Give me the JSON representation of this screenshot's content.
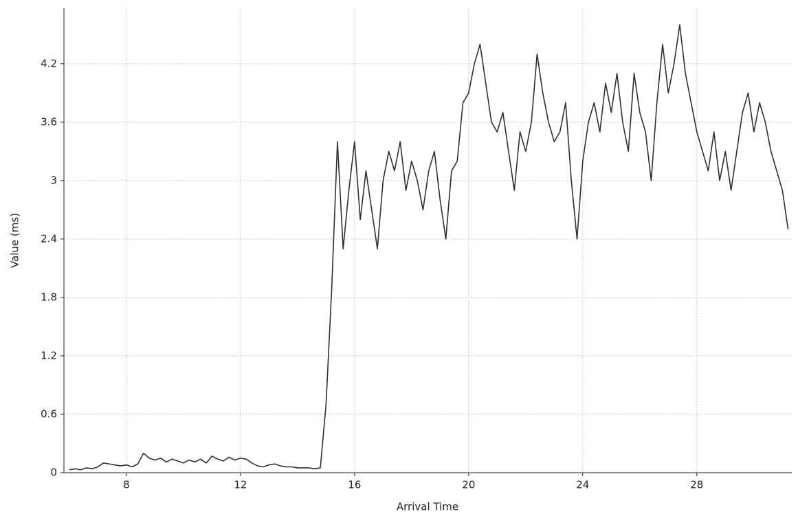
{
  "chart_data": {
    "type": "line",
    "x_label": "Arrival Time",
    "y_label": "Value (ms)",
    "xlim": [
      5.81,
      31.33
    ],
    "ylim": [
      0,
      4.77
    ],
    "xticks": [
      8,
      12,
      16,
      20,
      24,
      28
    ],
    "yticks": [
      0,
      0.6,
      1.2,
      1.8,
      2.4,
      3,
      3.6,
      4.2
    ],
    "grid": true,
    "series": [
      {
        "color": "#2b3035",
        "x": [
          6.0,
          6.2,
          6.4,
          6.6,
          6.8,
          7.0,
          7.2,
          7.4,
          7.6,
          7.8,
          8.0,
          8.2,
          8.4,
          8.6,
          8.8,
          9.0,
          9.2,
          9.4,
          9.6,
          9.8,
          10.0,
          10.2,
          10.4,
          10.6,
          10.8,
          11.0,
          11.2,
          11.4,
          11.6,
          11.8,
          12.0,
          12.2,
          12.4,
          12.6,
          12.8,
          13.0,
          13.2,
          13.4,
          13.6,
          13.8,
          14.0,
          14.2,
          14.4,
          14.6,
          14.8,
          15.0,
          15.2,
          15.4,
          15.6,
          15.8,
          16.0,
          16.2,
          16.4,
          16.6,
          16.8,
          17.0,
          17.2,
          17.4,
          17.6,
          17.8,
          18.0,
          18.2,
          18.4,
          18.6,
          18.8,
          19.0,
          19.2,
          19.4,
          19.6,
          19.8,
          20.0,
          20.2,
          20.4,
          20.6,
          20.8,
          21.0,
          21.2,
          21.4,
          21.6,
          21.8,
          22.0,
          22.2,
          22.4,
          22.6,
          22.8,
          23.0,
          23.2,
          23.4,
          23.6,
          23.8,
          24.0,
          24.2,
          24.4,
          24.6,
          24.8,
          25.0,
          25.2,
          25.4,
          25.6,
          25.8,
          26.0,
          26.2,
          26.4,
          26.6,
          26.8,
          27.0,
          27.2,
          27.4,
          27.6,
          27.8,
          28.0,
          28.2,
          28.4,
          28.6,
          28.8,
          29.0,
          29.2,
          29.4,
          29.6,
          29.8,
          30.0,
          30.2,
          30.4,
          30.6,
          30.8,
          31.0,
          31.2
        ],
        "values": [
          0.03,
          0.04,
          0.03,
          0.05,
          0.04,
          0.06,
          0.1,
          0.09,
          0.08,
          0.07,
          0.08,
          0.06,
          0.09,
          0.2,
          0.15,
          0.13,
          0.15,
          0.11,
          0.14,
          0.12,
          0.1,
          0.13,
          0.11,
          0.14,
          0.1,
          0.17,
          0.14,
          0.12,
          0.16,
          0.13,
          0.15,
          0.14,
          0.1,
          0.07,
          0.06,
          0.08,
          0.09,
          0.07,
          0.06,
          0.06,
          0.05,
          0.05,
          0.05,
          0.04,
          0.05,
          0.7,
          1.9,
          3.4,
          2.3,
          2.9,
          3.4,
          2.6,
          3.1,
          2.7,
          2.3,
          3.0,
          3.3,
          3.1,
          3.4,
          2.9,
          3.2,
          3.0,
          2.7,
          3.1,
          3.3,
          2.8,
          2.4,
          3.1,
          3.2,
          3.8,
          3.9,
          4.2,
          4.4,
          4.0,
          3.6,
          3.5,
          3.7,
          3.3,
          2.9,
          3.5,
          3.3,
          3.6,
          4.3,
          3.9,
          3.6,
          3.4,
          3.5,
          3.8,
          3.0,
          2.4,
          3.2,
          3.6,
          3.8,
          3.5,
          4.0,
          3.7,
          4.1,
          3.6,
          3.3,
          4.1,
          3.7,
          3.5,
          3.0,
          3.8,
          4.4,
          3.9,
          4.2,
          4.6,
          4.1,
          3.8,
          3.5,
          3.3,
          3.1,
          3.5,
          3.0,
          3.3,
          2.9,
          3.3,
          3.7,
          3.9,
          3.5,
          3.8,
          3.6,
          3.3,
          3.1,
          2.9,
          2.5
        ]
      }
    ]
  }
}
